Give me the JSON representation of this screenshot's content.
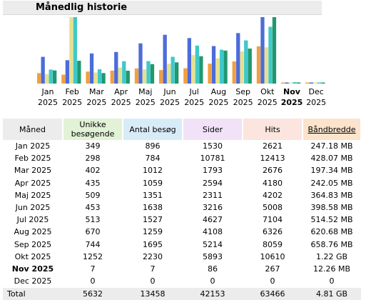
{
  "title": "Månedlig historie",
  "chart_data": {
    "type": "bar",
    "categories": [
      {
        "month": "Jan",
        "year": "2025",
        "current": false
      },
      {
        "month": "Feb",
        "year": "2025",
        "current": false
      },
      {
        "month": "Mar",
        "year": "2025",
        "current": false
      },
      {
        "month": "Apr",
        "year": "2025",
        "current": false
      },
      {
        "month": "Maj",
        "year": "2025",
        "current": false
      },
      {
        "month": "Jun",
        "year": "2025",
        "current": false
      },
      {
        "month": "Jul",
        "year": "2025",
        "current": false
      },
      {
        "month": "Aug",
        "year": "2025",
        "current": false
      },
      {
        "month": "Sep",
        "year": "2025",
        "current": false
      },
      {
        "month": "Okt",
        "year": "2025",
        "current": false
      },
      {
        "month": "Nov",
        "year": "2025",
        "current": true
      },
      {
        "month": "Dec",
        "year": "2025",
        "current": false
      }
    ],
    "series": [
      {
        "key": "unique_visitors",
        "color": "#f0a040",
        "values": [
          349,
          298,
          402,
          435,
          509,
          453,
          513,
          670,
          744,
          1252,
          7,
          0
        ]
      },
      {
        "key": "visits",
        "color": "#4c6cd8",
        "values": [
          896,
          784,
          1012,
          1059,
          1351,
          1638,
          1527,
          1259,
          1695,
          2230,
          7,
          0
        ]
      },
      {
        "key": "pages",
        "color": "#e8e090",
        "values": [
          1530,
          10781,
          1793,
          2594,
          2311,
          3216,
          4627,
          4108,
          5214,
          5893,
          86,
          0
        ]
      },
      {
        "key": "hits",
        "color": "#40c8c8",
        "values": [
          2621,
          12413,
          2676,
          4180,
          4202,
          5008,
          7104,
          6326,
          8059,
          10610,
          267,
          0
        ]
      },
      {
        "key": "bandwidth_mb",
        "color": "#209870",
        "values": [
          247.18,
          428.07,
          197.34,
          242.05,
          364.83,
          398.58,
          514.52,
          620.68,
          658.76,
          1249.28,
          12.26,
          0
        ]
      }
    ]
  },
  "table": {
    "headers": {
      "month": "Måned",
      "unique_visitors": "Unikke besøgende",
      "visits": "Antal besøg",
      "pages": "Sider",
      "hits": "Hits",
      "bandwidth": "Båndbredde"
    },
    "rows": [
      {
        "month": "Jan 2025",
        "unique_visitors": "349",
        "visits": "896",
        "pages": "1530",
        "hits": "2621",
        "bandwidth": "247.18 MB",
        "current": false
      },
      {
        "month": "Feb 2025",
        "unique_visitors": "298",
        "visits": "784",
        "pages": "10781",
        "hits": "12413",
        "bandwidth": "428.07 MB",
        "current": false
      },
      {
        "month": "Mar 2025",
        "unique_visitors": "402",
        "visits": "1012",
        "pages": "1793",
        "hits": "2676",
        "bandwidth": "197.34 MB",
        "current": false
      },
      {
        "month": "Apr 2025",
        "unique_visitors": "435",
        "visits": "1059",
        "pages": "2594",
        "hits": "4180",
        "bandwidth": "242.05 MB",
        "current": false
      },
      {
        "month": "Maj 2025",
        "unique_visitors": "509",
        "visits": "1351",
        "pages": "2311",
        "hits": "4202",
        "bandwidth": "364.83 MB",
        "current": false
      },
      {
        "month": "Jun 2025",
        "unique_visitors": "453",
        "visits": "1638",
        "pages": "3216",
        "hits": "5008",
        "bandwidth": "398.58 MB",
        "current": false
      },
      {
        "month": "Jul 2025",
        "unique_visitors": "513",
        "visits": "1527",
        "pages": "4627",
        "hits": "7104",
        "bandwidth": "514.52 MB",
        "current": false
      },
      {
        "month": "Aug 2025",
        "unique_visitors": "670",
        "visits": "1259",
        "pages": "4108",
        "hits": "6326",
        "bandwidth": "620.68 MB",
        "current": false
      },
      {
        "month": "Sep 2025",
        "unique_visitors": "744",
        "visits": "1695",
        "pages": "5214",
        "hits": "8059",
        "bandwidth": "658.76 MB",
        "current": false
      },
      {
        "month": "Okt 2025",
        "unique_visitors": "1252",
        "visits": "2230",
        "pages": "5893",
        "hits": "10610",
        "bandwidth": "1.22 GB",
        "current": false
      },
      {
        "month": "Nov 2025",
        "unique_visitors": "7",
        "visits": "7",
        "pages": "86",
        "hits": "267",
        "bandwidth": "12.26 MB",
        "current": true
      },
      {
        "month": "Dec 2025",
        "unique_visitors": "0",
        "visits": "0",
        "pages": "0",
        "hits": "0",
        "bandwidth": "0",
        "current": false
      }
    ],
    "total": {
      "label": "Total",
      "unique_visitors": "5632",
      "visits": "13458",
      "pages": "42153",
      "hits": "63466",
      "bandwidth": "4.81 GB"
    }
  }
}
